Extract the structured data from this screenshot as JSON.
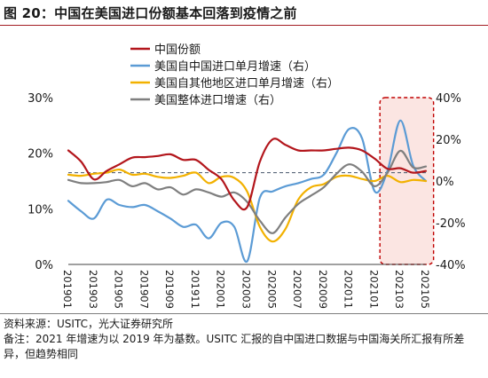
{
  "figure_title": "图 20：中国在美国进口份额基本回落到疫情之前",
  "source_note": "资料来源：USITC，光大证券研究所",
  "remark_note": "备注：2021 年增速为以 2019 年为基数。USITC 汇报的自中国进口数据与中国海关所汇报有所差异，但趋势相同",
  "colors": {
    "china_share": "#b3161c",
    "us_from_china": "#5b9bd5",
    "us_from_other": "#f2b100",
    "us_total": "#7f7f7f",
    "highlight_border": "#c00000",
    "highlight_fill": "#fbe5e2",
    "reference_line": "#44546a"
  },
  "chart_data": {
    "type": "line",
    "x": [
      "201901",
      "201902",
      "201903",
      "201904",
      "201905",
      "201906",
      "201907",
      "201908",
      "201909",
      "201910",
      "201911",
      "201912",
      "202001",
      "202002",
      "202003",
      "202004",
      "202005",
      "202006",
      "202007",
      "202008",
      "202009",
      "202010",
      "202011",
      "202012",
      "202101",
      "202102",
      "202103",
      "202104",
      "202105"
    ],
    "x_tick_labels": [
      "201901",
      "201903",
      "201905",
      "201907",
      "201909",
      "201911",
      "202001",
      "202003",
      "202005",
      "202007",
      "202009",
      "202011",
      "202101",
      "202103",
      "202105"
    ],
    "y_left": {
      "ticks": [
        "0%",
        "10%",
        "20%",
        "30%"
      ],
      "ylim": [
        0,
        30
      ]
    },
    "y_right": {
      "ticks": [
        "-40%",
        "-20%",
        "0%",
        "20%",
        "40%"
      ],
      "ylim": [
        -40,
        40
      ]
    },
    "reference_line": {
      "axis": "left",
      "value": 16.5
    },
    "highlight_range": [
      "202102",
      "202105"
    ],
    "legend_position": "top",
    "series": [
      {
        "name": "中国份额",
        "axis": "left",
        "color_key": "china_share",
        "values": [
          20.5,
          18.5,
          15.3,
          16.8,
          18.0,
          19.2,
          19.3,
          19.5,
          19.8,
          18.8,
          18.8,
          17.0,
          15.3,
          11.5,
          10.3,
          18.5,
          22.5,
          21.5,
          20.5,
          20.5,
          20.5,
          20.8,
          21.0,
          20.5,
          19.0,
          17.2,
          17.3,
          16.5,
          16.8
        ]
      },
      {
        "name": "美国自中国进口单月增速（右）",
        "axis": "right",
        "color_key": "us_from_china",
        "values": [
          -9.5,
          -14.5,
          -18.0,
          -9.0,
          -11.5,
          -12.5,
          -11.5,
          -14.5,
          -18.0,
          -22.0,
          -21.0,
          -27.5,
          -20.0,
          -22.0,
          -38.5,
          -8.0,
          -5.0,
          -2.5,
          -1.0,
          1.0,
          3.0,
          13.5,
          25.0,
          20.5,
          -5.0,
          5.0,
          29.0,
          7.5,
          0.0
        ]
      },
      {
        "name": "美国自其他地区进口单月增速（右）",
        "axis": "right",
        "color_key": "us_from_other",
        "values": [
          3.0,
          2.5,
          3.5,
          4.0,
          5.5,
          3.0,
          3.5,
          2.0,
          1.5,
          2.5,
          4.0,
          -1.0,
          2.0,
          1.5,
          -5.0,
          -22.0,
          -29.0,
          -23.0,
          -9.0,
          -3.0,
          -1.5,
          2.0,
          2.5,
          1.0,
          0.0,
          2.5,
          -0.5,
          0.5,
          0.0
        ]
      },
      {
        "name": "美国整体进口增速（右）",
        "axis": "right",
        "color_key": "us_total",
        "values": [
          0.5,
          -1.0,
          -1.0,
          -0.5,
          0.5,
          -2.5,
          -1.0,
          -4.0,
          -3.0,
          -6.5,
          -4.0,
          -5.5,
          -7.5,
          -5.5,
          -10.0,
          -19.0,
          -25.0,
          -17.5,
          -11.0,
          -7.0,
          -3.0,
          3.5,
          8.0,
          4.5,
          -2.5,
          4.0,
          14.5,
          6.5,
          7.0
        ]
      }
    ]
  }
}
